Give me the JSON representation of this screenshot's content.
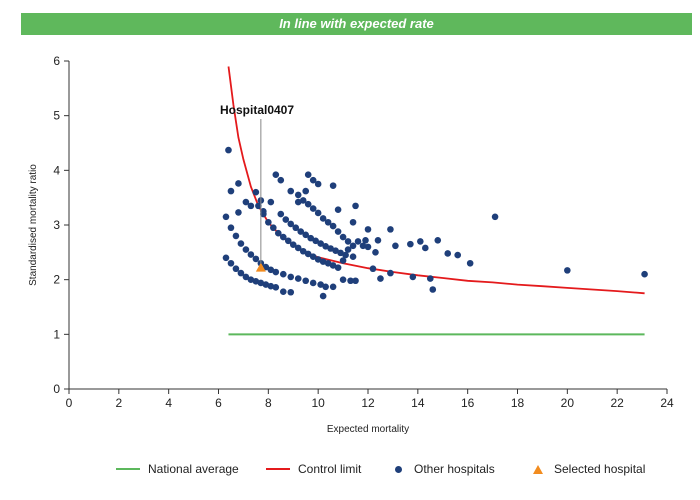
{
  "header": {
    "title": "In line with expected rate"
  },
  "chart_data": {
    "type": "scatter",
    "xlabel": "Expected mortality",
    "ylabel": "Standardised mortality ratio",
    "xlim": [
      0,
      24
    ],
    "ylim": [
      0,
      6
    ],
    "xticks": [
      0,
      2,
      4,
      6,
      8,
      10,
      12,
      14,
      16,
      18,
      20,
      22,
      24
    ],
    "yticks": [
      0,
      1,
      2,
      3,
      4,
      5,
      6
    ],
    "grid": false,
    "legend_position": "bottom",
    "colors": {
      "national": "#5cb85c",
      "control": "#e41a1c",
      "other": "#1f3f7a",
      "selected": "#f28c1f",
      "banner": "#5fb85c"
    },
    "annotation": {
      "text": "Hospital0407",
      "x": 7.7,
      "y": 2.22
    },
    "series": [
      {
        "name": "National average",
        "kind": "line",
        "points": [
          [
            6.4,
            1.0
          ],
          [
            23.1,
            1.0
          ]
        ]
      },
      {
        "name": "Control limit",
        "kind": "curve",
        "points": [
          [
            6.4,
            5.9
          ],
          [
            6.6,
            5.2
          ],
          [
            6.8,
            4.6
          ],
          [
            7.0,
            4.2
          ],
          [
            7.3,
            3.7
          ],
          [
            7.6,
            3.35
          ],
          [
            8.0,
            3.05
          ],
          [
            8.5,
            2.8
          ],
          [
            9.0,
            2.63
          ],
          [
            9.5,
            2.5
          ],
          [
            10.0,
            2.41
          ],
          [
            11.0,
            2.3
          ],
          [
            12.0,
            2.21
          ],
          [
            13.0,
            2.14
          ],
          [
            14.0,
            2.08
          ],
          [
            15.0,
            2.03
          ],
          [
            16.0,
            1.98
          ],
          [
            17.0,
            1.95
          ],
          [
            18.0,
            1.91
          ],
          [
            19.0,
            1.88
          ],
          [
            20.0,
            1.85
          ],
          [
            21.0,
            1.82
          ],
          [
            22.0,
            1.79
          ],
          [
            23.1,
            1.75
          ]
        ]
      },
      {
        "name": "Other hospitals",
        "kind": "scatter",
        "points": [
          [
            6.3,
            2.4
          ],
          [
            6.5,
            2.3
          ],
          [
            6.7,
            2.2
          ],
          [
            6.9,
            2.12
          ],
          [
            7.1,
            2.05
          ],
          [
            7.3,
            2.0
          ],
          [
            7.5,
            1.97
          ],
          [
            7.7,
            1.94
          ],
          [
            7.9,
            1.91
          ],
          [
            8.1,
            1.88
          ],
          [
            8.3,
            1.86
          ],
          [
            8.6,
            1.78
          ],
          [
            8.9,
            1.77
          ],
          [
            6.3,
            3.15
          ],
          [
            6.5,
            2.95
          ],
          [
            6.7,
            2.8
          ],
          [
            6.9,
            2.66
          ],
          [
            7.1,
            2.55
          ],
          [
            7.3,
            2.46
          ],
          [
            7.5,
            2.38
          ],
          [
            7.7,
            2.3
          ],
          [
            7.9,
            2.23
          ],
          [
            8.1,
            2.18
          ],
          [
            8.3,
            2.14
          ],
          [
            8.6,
            2.1
          ],
          [
            8.9,
            2.05
          ],
          [
            9.2,
            2.02
          ],
          [
            9.5,
            1.98
          ],
          [
            9.8,
            1.94
          ],
          [
            10.1,
            1.91
          ],
          [
            10.3,
            1.87
          ],
          [
            10.6,
            1.87
          ],
          [
            7.6,
            3.35
          ],
          [
            7.8,
            3.2
          ],
          [
            8.0,
            3.05
          ],
          [
            8.2,
            2.95
          ],
          [
            8.4,
            2.85
          ],
          [
            8.6,
            2.78
          ],
          [
            8.8,
            2.71
          ],
          [
            9.0,
            2.64
          ],
          [
            9.2,
            2.58
          ],
          [
            9.4,
            2.52
          ],
          [
            9.6,
            2.47
          ],
          [
            9.8,
            2.42
          ],
          [
            10.0,
            2.37
          ],
          [
            10.2,
            2.33
          ],
          [
            10.4,
            2.3
          ],
          [
            10.6,
            2.26
          ],
          [
            10.8,
            2.22
          ],
          [
            11.0,
            2.0
          ],
          [
            11.3,
            1.98
          ],
          [
            11.5,
            1.98
          ],
          [
            8.5,
            3.2
          ],
          [
            8.7,
            3.1
          ],
          [
            8.9,
            3.02
          ],
          [
            9.1,
            2.95
          ],
          [
            9.3,
            2.88
          ],
          [
            9.5,
            2.82
          ],
          [
            9.7,
            2.76
          ],
          [
            9.9,
            2.71
          ],
          [
            10.1,
            2.66
          ],
          [
            10.3,
            2.61
          ],
          [
            10.5,
            2.57
          ],
          [
            10.7,
            2.53
          ],
          [
            10.9,
            2.49
          ],
          [
            11.1,
            2.45
          ],
          [
            11.4,
            2.42
          ],
          [
            9.2,
            3.55
          ],
          [
            9.4,
            3.45
          ],
          [
            9.6,
            3.38
          ],
          [
            9.8,
            3.3
          ],
          [
            10.0,
            3.22
          ],
          [
            10.2,
            3.12
          ],
          [
            10.4,
            3.05
          ],
          [
            10.6,
            2.98
          ],
          [
            10.8,
            2.88
          ],
          [
            11.0,
            2.78
          ],
          [
            11.2,
            2.7
          ],
          [
            11.4,
            2.62
          ],
          [
            11.6,
            2.7
          ],
          [
            11.8,
            2.62
          ],
          [
            6.4,
            4.37
          ],
          [
            6.5,
            3.62
          ],
          [
            6.8,
            3.76
          ],
          [
            6.8,
            3.23
          ],
          [
            7.1,
            3.42
          ],
          [
            7.3,
            3.35
          ],
          [
            7.5,
            3.6
          ],
          [
            7.7,
            3.45
          ],
          [
            7.8,
            3.25
          ],
          [
            8.1,
            3.42
          ],
          [
            8.3,
            3.92
          ],
          [
            8.5,
            3.82
          ],
          [
            8.9,
            3.62
          ],
          [
            9.2,
            3.42
          ],
          [
            9.5,
            3.62
          ],
          [
            9.6,
            3.92
          ],
          [
            9.8,
            3.82
          ],
          [
            10.0,
            3.75
          ],
          [
            10.6,
            3.72
          ],
          [
            10.8,
            3.28
          ],
          [
            11.4,
            3.05
          ],
          [
            11.5,
            3.35
          ],
          [
            12.0,
            2.92
          ],
          [
            12.4,
            2.72
          ],
          [
            12.9,
            2.92
          ],
          [
            13.1,
            2.62
          ],
          [
            13.7,
            2.65
          ],
          [
            14.1,
            2.7
          ],
          [
            14.3,
            2.58
          ],
          [
            14.8,
            2.72
          ],
          [
            15.2,
            2.48
          ],
          [
            15.6,
            2.45
          ],
          [
            16.1,
            2.3
          ],
          [
            12.2,
            2.2
          ],
          [
            12.5,
            2.02
          ],
          [
            12.9,
            2.12
          ],
          [
            14.5,
            2.02
          ],
          [
            14.6,
            1.82
          ],
          [
            13.8,
            2.05
          ],
          [
            12.0,
            2.6
          ],
          [
            12.3,
            2.5
          ],
          [
            17.1,
            3.15
          ],
          [
            20.0,
            2.17
          ],
          [
            23.1,
            2.1
          ],
          [
            10.2,
            1.7
          ],
          [
            11.0,
            2.35
          ],
          [
            11.2,
            2.55
          ],
          [
            11.9,
            2.72
          ]
        ]
      },
      {
        "name": "Selected hospital",
        "kind": "marker",
        "points": [
          [
            7.7,
            2.22
          ]
        ]
      }
    ]
  }
}
